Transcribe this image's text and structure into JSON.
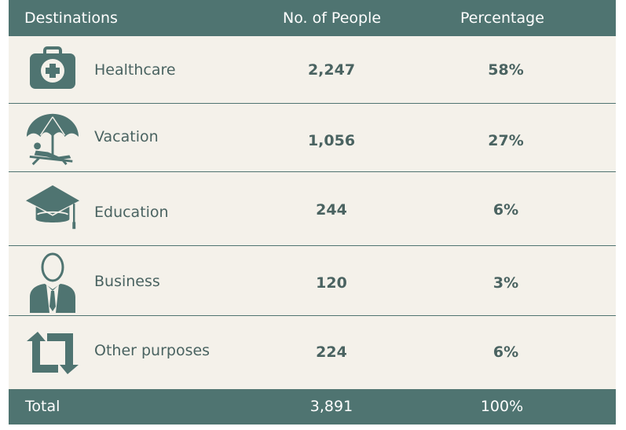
{
  "header": {
    "col_destination": "Destinations",
    "col_people": "No. of People",
    "col_percentage": "Percentage"
  },
  "rows": [
    {
      "label": "Healthcare",
      "people": "2,247",
      "percentage": "58%",
      "icon": "medical-kit-icon"
    },
    {
      "label": "Vacation",
      "people": "1,056",
      "percentage": "27%",
      "icon": "beach-umbrella-icon"
    },
    {
      "label": "Education",
      "people": "244",
      "percentage": "6%",
      "icon": "graduation-cap-icon"
    },
    {
      "label": "Business",
      "people": "120",
      "percentage": "3%",
      "icon": "businessman-icon"
    },
    {
      "label": "Other purposes",
      "people": "224",
      "percentage": "6%",
      "icon": "repeat-arrows-icon"
    }
  ],
  "total": {
    "label": "Total",
    "people": "3,891",
    "percentage": "100%"
  },
  "colors": {
    "header_bg": "#4f7471",
    "row_bg": "#f4f1ea",
    "text": "#4a6361",
    "icon": "#4f7471"
  },
  "chart_data": {
    "type": "table",
    "columns": [
      "Destinations",
      "No. of People",
      "Percentage"
    ],
    "rows": [
      [
        "Healthcare",
        2247,
        58
      ],
      [
        "Vacation",
        1056,
        27
      ],
      [
        "Education",
        244,
        6
      ],
      [
        "Business",
        120,
        3
      ],
      [
        "Other purposes",
        224,
        6
      ]
    ],
    "total": [
      "Total",
      3891,
      100
    ]
  }
}
